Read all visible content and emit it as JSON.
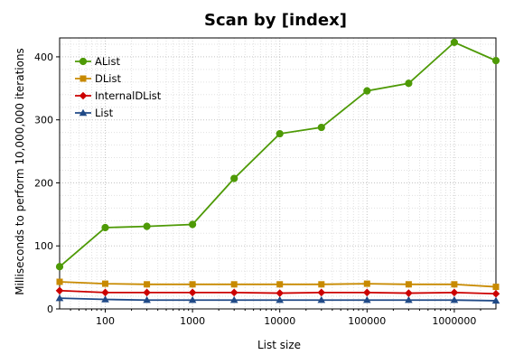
{
  "chart_data": {
    "type": "line",
    "title": "Scan by [index]",
    "xlabel": "List size",
    "ylabel": "Milliseconds to perform 10,000,000 iterations",
    "x_scale": "log",
    "xlim": [
      30,
      3000000
    ],
    "ylim": [
      0,
      430
    ],
    "x_ticks": [
      100,
      1000,
      10000,
      100000,
      1000000
    ],
    "x_tick_labels": [
      "100",
      "1000",
      "10000",
      "100000",
      "1000000"
    ],
    "y_ticks": [
      0,
      100,
      200,
      300,
      400
    ],
    "y_tick_labels": [
      "0",
      "100",
      "200",
      "300",
      "400"
    ],
    "grid": true,
    "legend_position": "top-left",
    "x": [
      30,
      100,
      300,
      1000,
      3000,
      10000,
      30000,
      100000,
      300000,
      1000000,
      3000000
    ],
    "series": [
      {
        "name": "AList",
        "color": "#4e9a06",
        "marker": "circle",
        "values": [
          67,
          129,
          131,
          134,
          207,
          278,
          288,
          346,
          358,
          423,
          394
        ]
      },
      {
        "name": "DList",
        "color": "#c88a00",
        "marker": "square",
        "values": [
          43,
          40,
          39,
          39,
          39,
          39,
          39,
          40,
          39,
          39,
          35
        ]
      },
      {
        "name": "InternalDList",
        "color": "#cc0000",
        "marker": "diamond",
        "values": [
          29,
          26,
          26,
          26,
          26,
          25,
          26,
          26,
          25,
          26,
          24
        ]
      },
      {
        "name": "List",
        "color": "#204a87",
        "marker": "triangle",
        "values": [
          17,
          15,
          14,
          14,
          14,
          14,
          14,
          14,
          14,
          14,
          13
        ]
      }
    ]
  }
}
